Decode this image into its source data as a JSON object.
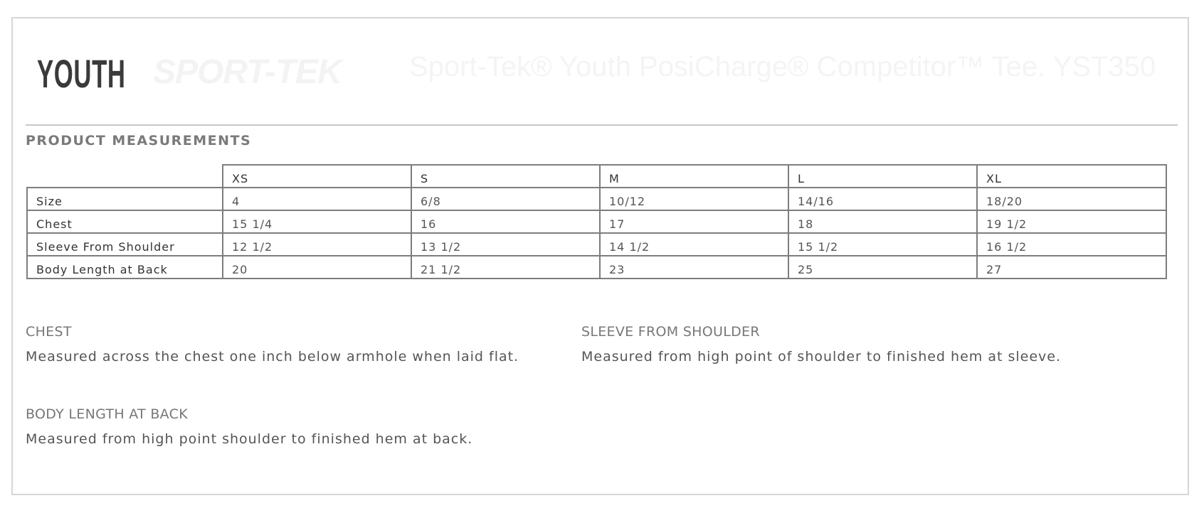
{
  "header": {
    "badge": "YOUTH",
    "watermark_logo": "SPORT-TEK",
    "watermark_title": "Sport-Tek® Youth PosiCharge® Competitor™ Tee. YST350"
  },
  "section_title": "PRODUCT MEASUREMENTS",
  "table": {
    "columns": [
      "XS",
      "S",
      "M",
      "L",
      "XL"
    ],
    "rows": [
      {
        "label": "Size",
        "values": [
          "4",
          "6/8",
          "10/12",
          "14/16",
          "18/20"
        ]
      },
      {
        "label": "Chest",
        "values": [
          "15 1/4",
          "16",
          "17",
          "18",
          "19 1/2"
        ]
      },
      {
        "label": "Sleeve From Shoulder",
        "values": [
          "12 1/2",
          "13 1/2",
          "14 1/2",
          "15 1/2",
          "16 1/2"
        ]
      },
      {
        "label": "Body Length at Back",
        "values": [
          "20",
          "21 1/2",
          "23",
          "25",
          "27"
        ]
      }
    ]
  },
  "descriptions": [
    {
      "title": "CHEST",
      "text": "Measured across the chest one inch below armhole when laid flat."
    },
    {
      "title": "SLEEVE FROM SHOULDER",
      "text": "Measured from high point of shoulder to finished hem at sleeve."
    },
    {
      "title": "BODY LENGTH AT BACK",
      "text": "Measured from high point shoulder to finished hem at back."
    }
  ]
}
